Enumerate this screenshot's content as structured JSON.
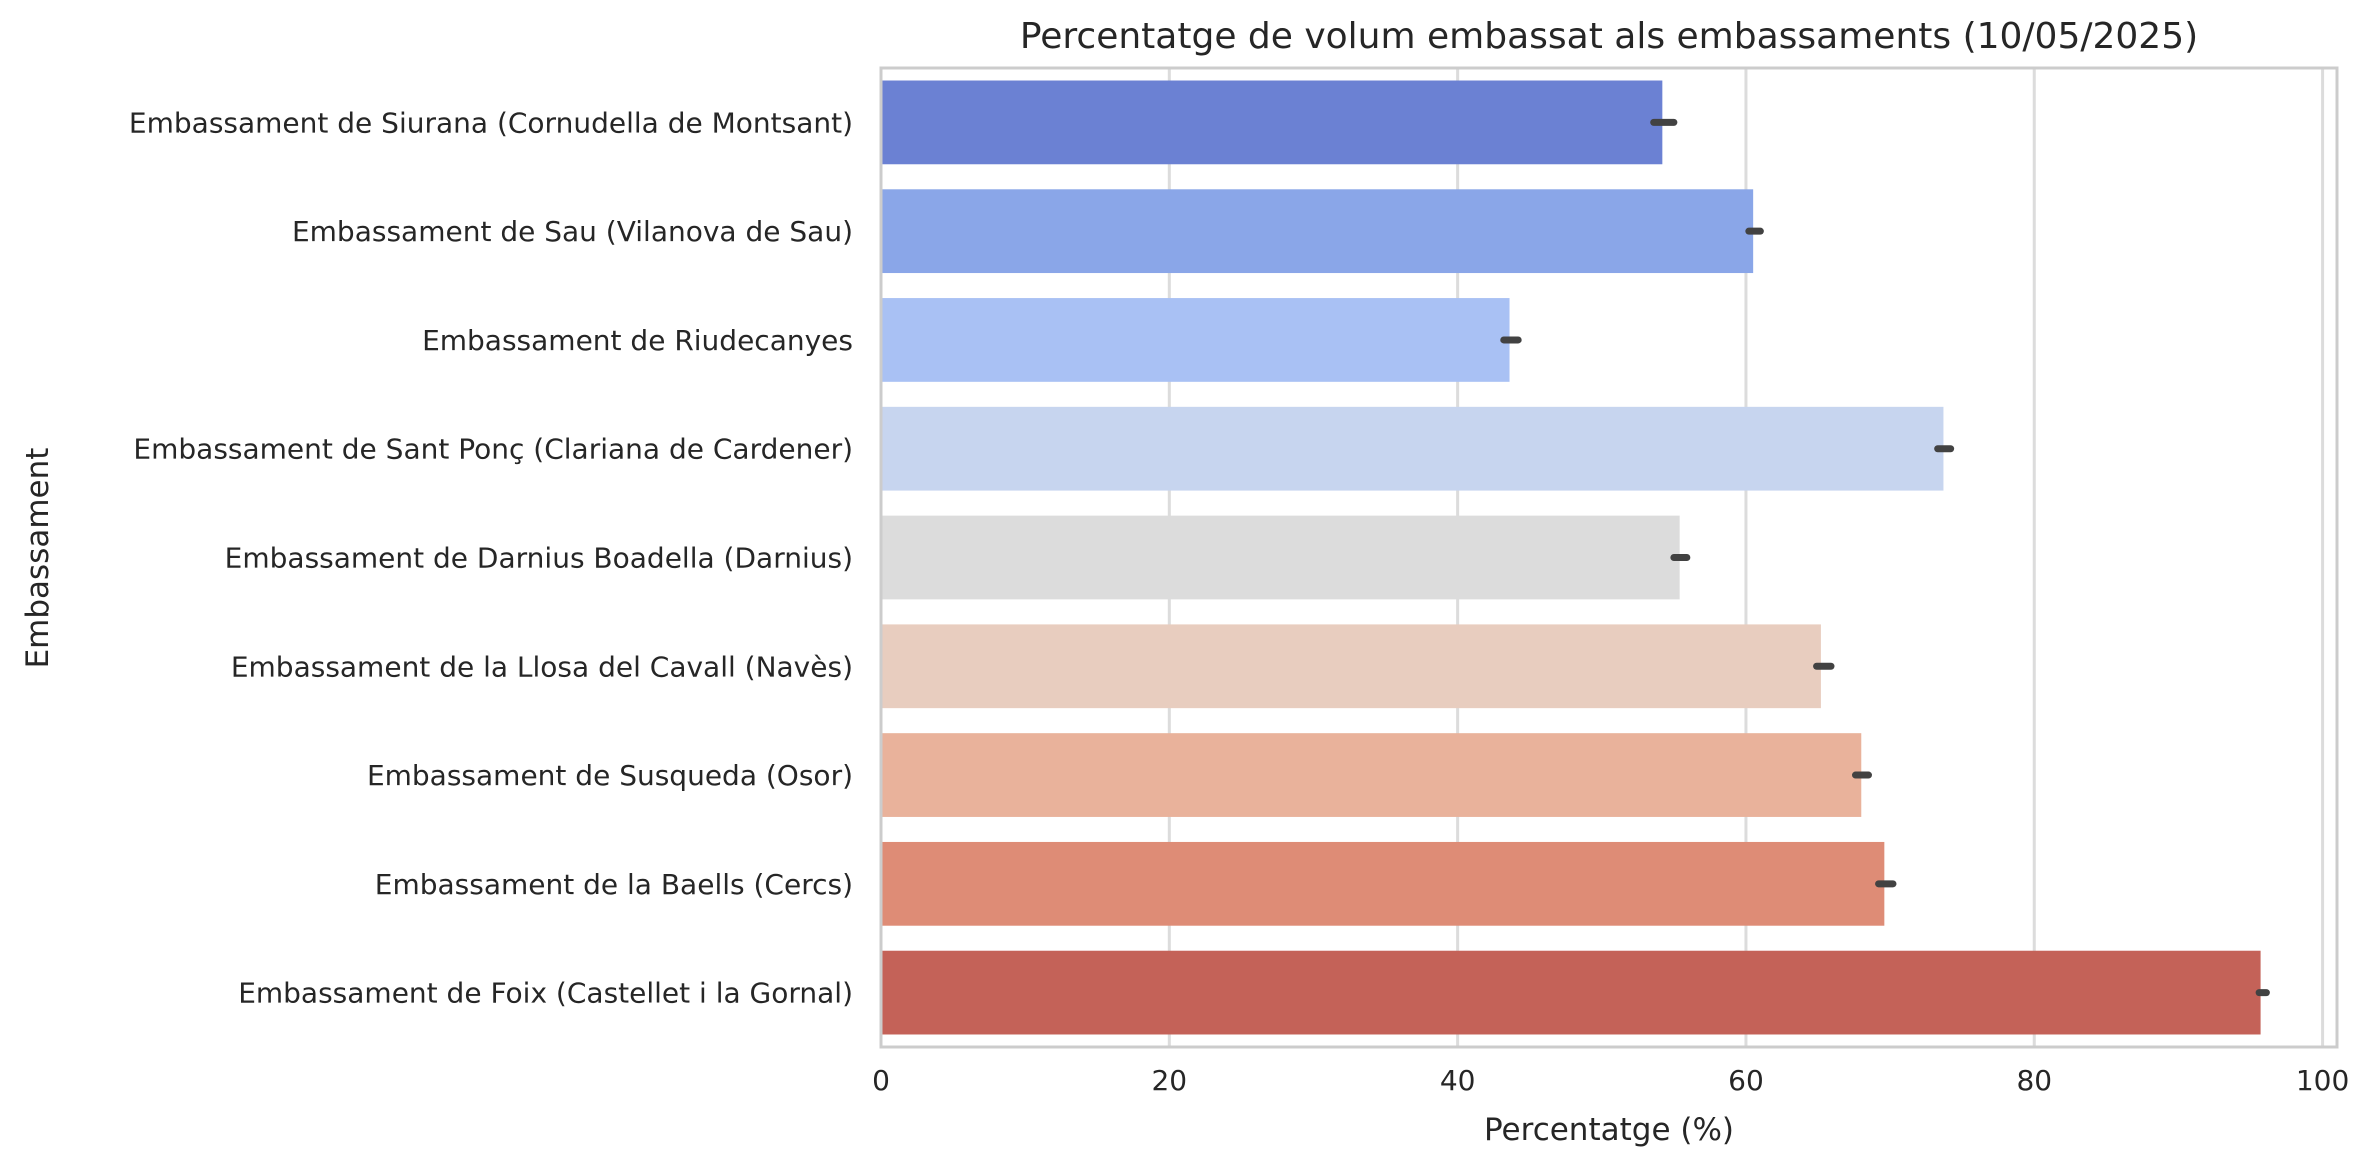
{
  "chart_data": {
    "type": "bar",
    "orientation": "horizontal",
    "title": "Percentatge de volum embassat als embassaments (10/05/2025)",
    "xlabel": "Percentatge (%)",
    "ylabel": "Embassament",
    "xlim": [
      0,
      101
    ],
    "xticks": [
      0,
      20,
      40,
      60,
      80,
      100
    ],
    "grid": true,
    "legend": "none",
    "categories": [
      "Embassament de Siurana (Cornudella de Montsant)",
      "Embassament de Sau (Vilanova de Sau)",
      "Embassament de Riudecanyes",
      "Embassament de Sant Ponç (Clariana de Cardener)",
      "Embassament de Darnius Boadella (Darnius)",
      "Embassament de la Llosa del Cavall (Navès)",
      "Embassament de Susqueda (Osor)",
      "Embassament de la Baells (Cercs)",
      "Embassament de Foix (Castellet i la Gornal)"
    ],
    "values": [
      54.2,
      60.5,
      43.6,
      73.7,
      55.4,
      65.2,
      68.0,
      69.6,
      95.7
    ],
    "error_intervals": [
      [
        53.6,
        55.0
      ],
      [
        60.2,
        61.0
      ],
      [
        43.2,
        44.2
      ],
      [
        73.3,
        74.2
      ],
      [
        55.0,
        55.9
      ],
      [
        64.9,
        65.9
      ],
      [
        67.6,
        68.5
      ],
      [
        69.2,
        70.2
      ],
      [
        95.6,
        96.1
      ]
    ],
    "colors": [
      "#6b81d3",
      "#8aa6e8",
      "#a9c1f4",
      "#c7d5ef",
      "#dcdcdc",
      "#e8cdbf",
      "#e9b29b",
      "#de8c76",
      "#c46258"
    ],
    "error_bar_color": "#424242"
  }
}
